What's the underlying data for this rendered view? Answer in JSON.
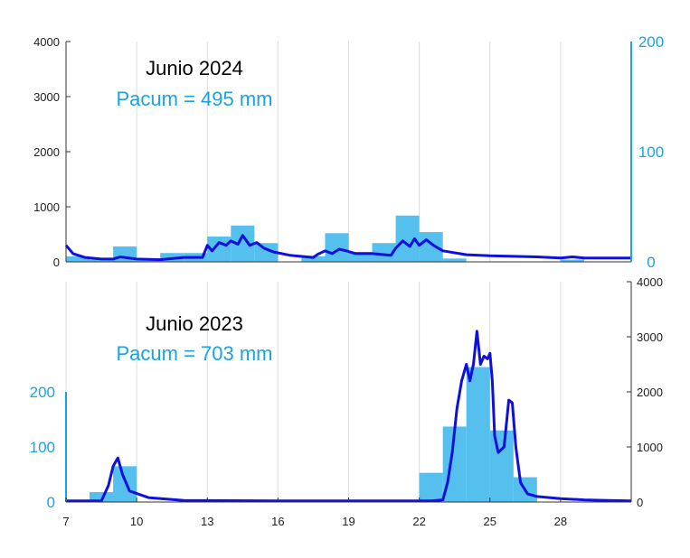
{
  "colors": {
    "bars": "#55bfee",
    "line": "#1010dd",
    "right_axis": "#19a3e0",
    "grid": "#dcdcdc",
    "axis": "#333333"
  },
  "chart_data": [
    {
      "type": "bar+line",
      "title": "Junio 2024",
      "subtitle": "Pacum = 495 mm",
      "xlim": [
        7,
        31
      ],
      "xticks": [
        7,
        10,
        13,
        16,
        19,
        22,
        25,
        28
      ],
      "grid": true,
      "y_left": {
        "ylim": [
          0,
          4000
        ],
        "ticks": [
          "0",
          "1000",
          "2000",
          "3000",
          "4000"
        ]
      },
      "y_right": {
        "ylim": [
          0,
          200
        ],
        "ticks": [
          "0",
          "100",
          "200"
        ],
        "color": "#19a3e0"
      },
      "bars": {
        "axis": "right",
        "width": 1,
        "x": [
          7,
          8,
          9,
          10,
          11,
          12,
          13,
          14,
          15,
          16,
          17,
          18,
          19,
          20,
          21,
          22,
          23,
          24,
          25,
          26,
          27,
          28,
          29,
          30
        ],
        "values": [
          5,
          2,
          14,
          3,
          8,
          8,
          23,
          33,
          17,
          0,
          5,
          26,
          9,
          17,
          42,
          27,
          3,
          0,
          0,
          0,
          0,
          2,
          0,
          0
        ]
      },
      "line": {
        "axis": "left",
        "x": [
          7.0,
          7.3,
          7.8,
          8.5,
          9.0,
          9.3,
          10,
          11,
          12,
          12.8,
          13.0,
          13.2,
          13.5,
          13.8,
          14.0,
          14.3,
          14.5,
          14.8,
          15.1,
          15.4,
          15.8,
          16.5,
          17.5,
          17.7,
          18.0,
          18.3,
          18.6,
          18.9,
          19.3,
          20,
          20.8,
          21.0,
          21.3,
          21.6,
          21.8,
          22.0,
          22.3,
          22.6,
          23.0,
          24,
          25,
          26,
          27,
          28,
          28.5,
          29,
          30,
          31
        ],
        "values": [
          300,
          150,
          80,
          50,
          50,
          90,
          50,
          40,
          80,
          80,
          300,
          200,
          350,
          300,
          380,
          320,
          480,
          300,
          350,
          250,
          180,
          120,
          80,
          140,
          200,
          150,
          230,
          200,
          150,
          150,
          120,
          250,
          380,
          280,
          420,
          300,
          400,
          300,
          200,
          130,
          110,
          100,
          90,
          70,
          90,
          70,
          70,
          70
        ]
      }
    },
    {
      "type": "bar+line",
      "title": "Junio 2023",
      "subtitle": "Pacum = 703 mm",
      "xlim": [
        7,
        31
      ],
      "xticks": [
        7,
        10,
        13,
        16,
        19,
        22,
        25,
        28
      ],
      "xtick_labels": [
        "7",
        "10",
        "13",
        "16",
        "19",
        "22",
        "25",
        "28"
      ],
      "grid": true,
      "y_left": {
        "ylim": [
          0,
          400
        ],
        "ticks": [
          "0",
          "100",
          "200"
        ],
        "color": "#19a3e0"
      },
      "y_right": {
        "ylim": [
          0,
          4000
        ],
        "ticks": [
          "0",
          "1000",
          "2000",
          "3000",
          "4000"
        ]
      },
      "bars": {
        "axis": "left",
        "width": 1,
        "x": [
          7,
          8,
          9,
          10,
          11,
          12,
          13,
          14,
          15,
          16,
          17,
          18,
          19,
          20,
          21,
          22,
          23,
          24,
          25,
          26,
          27,
          28,
          29,
          30
        ],
        "values": [
          0,
          18,
          65,
          0,
          0,
          0,
          0,
          0,
          0,
          0,
          0,
          0,
          0,
          0,
          0,
          53,
          137,
          245,
          130,
          45,
          0,
          0,
          0,
          0
        ]
      },
      "line": {
        "axis": "right",
        "x": [
          7.0,
          8.5,
          8.8,
          9.0,
          9.2,
          9.4,
          9.7,
          10.5,
          12,
          16,
          20,
          22.5,
          23.0,
          23.2,
          23.4,
          23.6,
          23.8,
          24.0,
          24.15,
          24.3,
          24.45,
          24.6,
          24.75,
          24.9,
          25.0,
          25.1,
          25.2,
          25.35,
          25.6,
          25.8,
          25.95,
          26.1,
          26.3,
          26.6,
          27,
          28,
          29,
          30,
          31
        ],
        "values": [
          20,
          20,
          300,
          650,
          800,
          500,
          200,
          80,
          30,
          20,
          20,
          20,
          40,
          350,
          900,
          1700,
          2200,
          2500,
          2200,
          2500,
          3100,
          2500,
          2650,
          2600,
          2700,
          2200,
          1200,
          900,
          1000,
          1850,
          1800,
          1000,
          350,
          150,
          100,
          60,
          40,
          30,
          20
        ]
      }
    }
  ]
}
